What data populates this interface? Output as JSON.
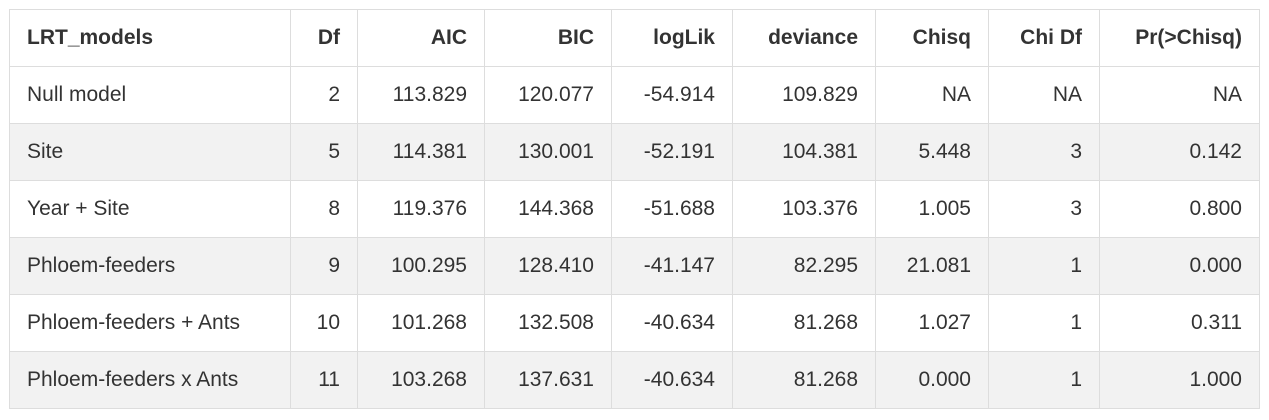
{
  "table": {
    "headers": [
      "LRT_models",
      "Df",
      "AIC",
      "BIC",
      "logLik",
      "deviance",
      "Chisq",
      "Chi Df",
      "Pr(>Chisq)"
    ],
    "rows": [
      [
        "Null model",
        "2",
        "113.829",
        "120.077",
        "-54.914",
        "109.829",
        "NA",
        "NA",
        "NA"
      ],
      [
        "Site",
        "5",
        "114.381",
        "130.001",
        "-52.191",
        "104.381",
        "5.448",
        "3",
        "0.142"
      ],
      [
        "Year + Site",
        "8",
        "119.376",
        "144.368",
        "-51.688",
        "103.376",
        "1.005",
        "3",
        "0.800"
      ],
      [
        "Phloem-feeders",
        "9",
        "100.295",
        "128.410",
        "-41.147",
        "82.295",
        "21.081",
        "1",
        "0.000"
      ],
      [
        "Phloem-feeders + Ants",
        "10",
        "101.268",
        "132.508",
        "-40.634",
        "81.268",
        "1.027",
        "1",
        "0.311"
      ],
      [
        "Phloem-feeders x Ants",
        "11",
        "103.268",
        "137.631",
        "-40.634",
        "81.268",
        "0.000",
        "1",
        "1.000"
      ]
    ]
  }
}
